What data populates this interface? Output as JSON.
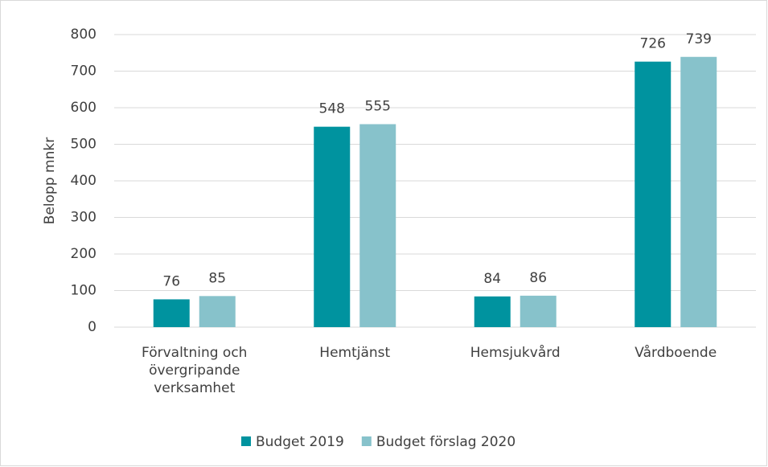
{
  "chart_data": {
    "type": "bar",
    "y_axis_label": "Belopp mnkr",
    "categories": [
      "Förvaltning och övergripande verksamhet",
      "Hemtjänst",
      "Hemsjukvård",
      "Vårdboende"
    ],
    "series": [
      {
        "name": "Budget 2019",
        "color": "#00939f",
        "values": [
          76,
          548,
          84,
          726
        ]
      },
      {
        "name": "Budget förslag 2020",
        "color": "#87c2cb",
        "values": [
          85,
          555,
          86,
          739
        ]
      }
    ],
    "ylim": [
      0,
      800
    ],
    "yticks": [
      0,
      100,
      200,
      300,
      400,
      500,
      600,
      700,
      800
    ],
    "grid": true,
    "legend": "bottom"
  }
}
